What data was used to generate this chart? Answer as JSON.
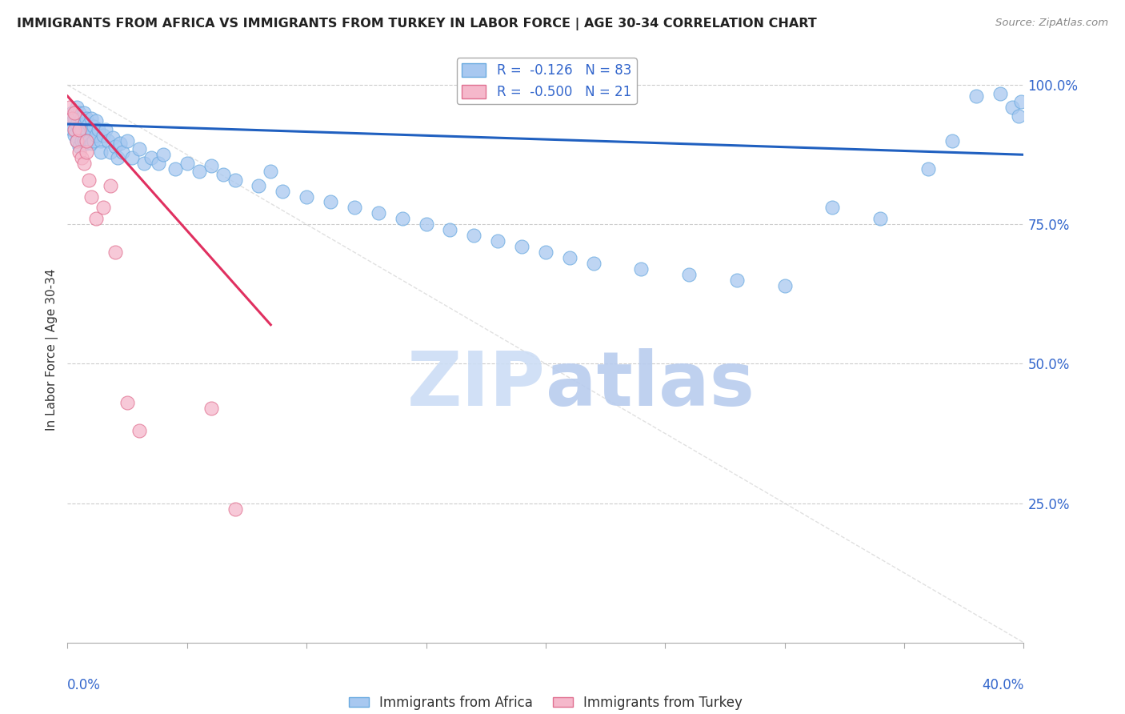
{
  "title": "IMMIGRANTS FROM AFRICA VS IMMIGRANTS FROM TURKEY IN LABOR FORCE | AGE 30-34 CORRELATION CHART",
  "source": "Source: ZipAtlas.com",
  "ylabel": "In Labor Force | Age 30-34",
  "legend1_r": "-0.126",
  "legend1_n": "83",
  "legend2_r": "-0.500",
  "legend2_n": "21",
  "legend1_label": "Immigrants from Africa",
  "legend2_label": "Immigrants from Turkey",
  "blue_dot_color": "#a8c8f0",
  "blue_dot_edge": "#6aaae0",
  "pink_dot_color": "#f5b8cb",
  "pink_dot_edge": "#e07090",
  "blue_line_color": "#2060c0",
  "pink_line_color": "#e03060",
  "watermark_color": "#ccddf5",
  "africa_x": [
    0.001,
    0.002,
    0.002,
    0.003,
    0.003,
    0.004,
    0.004,
    0.004,
    0.005,
    0.005,
    0.005,
    0.006,
    0.006,
    0.006,
    0.007,
    0.007,
    0.007,
    0.008,
    0.008,
    0.008,
    0.009,
    0.009,
    0.01,
    0.01,
    0.01,
    0.011,
    0.011,
    0.012,
    0.012,
    0.013,
    0.014,
    0.014,
    0.015,
    0.016,
    0.017,
    0.018,
    0.019,
    0.02,
    0.021,
    0.022,
    0.023,
    0.025,
    0.027,
    0.03,
    0.032,
    0.035,
    0.038,
    0.04,
    0.045,
    0.05,
    0.055,
    0.06,
    0.065,
    0.07,
    0.08,
    0.085,
    0.09,
    0.1,
    0.11,
    0.12,
    0.13,
    0.14,
    0.15,
    0.16,
    0.17,
    0.18,
    0.19,
    0.2,
    0.21,
    0.22,
    0.24,
    0.26,
    0.28,
    0.3,
    0.32,
    0.34,
    0.36,
    0.37,
    0.38,
    0.39,
    0.395,
    0.398,
    0.399
  ],
  "africa_y": [
    0.93,
    0.95,
    0.92,
    0.94,
    0.91,
    0.96,
    0.93,
    0.9,
    0.95,
    0.92,
    0.89,
    0.94,
    0.92,
    0.9,
    0.95,
    0.93,
    0.9,
    0.94,
    0.92,
    0.895,
    0.93,
    0.9,
    0.94,
    0.92,
    0.895,
    0.925,
    0.9,
    0.935,
    0.91,
    0.92,
    0.9,
    0.88,
    0.91,
    0.92,
    0.9,
    0.88,
    0.905,
    0.89,
    0.87,
    0.895,
    0.88,
    0.9,
    0.87,
    0.885,
    0.86,
    0.87,
    0.86,
    0.875,
    0.85,
    0.86,
    0.845,
    0.855,
    0.84,
    0.83,
    0.82,
    0.845,
    0.81,
    0.8,
    0.79,
    0.78,
    0.77,
    0.76,
    0.75,
    0.74,
    0.73,
    0.72,
    0.71,
    0.7,
    0.69,
    0.68,
    0.67,
    0.66,
    0.65,
    0.64,
    0.78,
    0.76,
    0.85,
    0.9,
    0.98,
    0.985,
    0.96,
    0.945,
    0.97
  ],
  "turkey_x": [
    0.001,
    0.002,
    0.003,
    0.003,
    0.004,
    0.005,
    0.005,
    0.006,
    0.007,
    0.008,
    0.008,
    0.009,
    0.01,
    0.012,
    0.015,
    0.018,
    0.02,
    0.025,
    0.03,
    0.06,
    0.07
  ],
  "turkey_y": [
    0.96,
    0.94,
    0.95,
    0.92,
    0.9,
    0.88,
    0.92,
    0.87,
    0.86,
    0.88,
    0.9,
    0.83,
    0.8,
    0.76,
    0.78,
    0.82,
    0.7,
    0.43,
    0.38,
    0.42,
    0.24
  ],
  "blue_line_x0": 0.0,
  "blue_line_x1": 0.4,
  "blue_line_y0": 0.93,
  "blue_line_y1": 0.875,
  "pink_line_x0": 0.0,
  "pink_line_x1": 0.085,
  "pink_line_y0": 0.98,
  "pink_line_y1": 0.57,
  "xlim": [
    0.0,
    0.4
  ],
  "ylim": [
    0.0,
    1.05
  ],
  "ytick_vals": [
    0.25,
    0.5,
    0.75,
    1.0
  ],
  "ytick_labels": [
    "25.0%",
    "50.0%",
    "75.0%",
    "100.0%"
  ],
  "xtick_vals": [
    0.0,
    0.05,
    0.1,
    0.15,
    0.2,
    0.25,
    0.3,
    0.35,
    0.4
  ]
}
